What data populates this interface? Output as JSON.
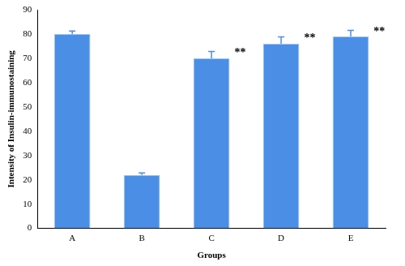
{
  "chart_data": {
    "type": "bar",
    "x_label": "Groups",
    "y_label": "Intensity of Insulin-immunostaining",
    "categories": [
      "A",
      "B",
      "C",
      "D",
      "E"
    ],
    "values": [
      80,
      22,
      70,
      76,
      79
    ],
    "errors": [
      1.2,
      0.8,
      2.8,
      2.8,
      2.5
    ],
    "annotations": [
      {
        "category": "C",
        "text": "**"
      },
      {
        "category": "D",
        "text": "**"
      },
      {
        "category": "E",
        "text": "**"
      }
    ],
    "color": "#4a8ee6",
    "ylim": [
      0,
      90
    ],
    "yticks": [
      0,
      10,
      20,
      30,
      40,
      50,
      60,
      70,
      80,
      90
    ],
    "grid": false
  }
}
